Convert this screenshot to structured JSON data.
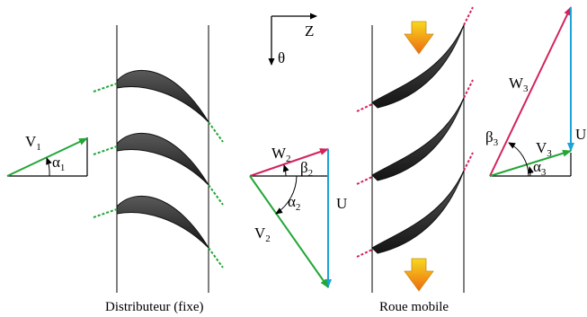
{
  "captions": {
    "stator": "Distributeur (fixe)",
    "rotor": "Roue mobile"
  },
  "axes": {
    "z": "Z",
    "theta": "θ"
  },
  "inlet_triangle": {
    "v_main": "V",
    "v_sub": "1",
    "a_main": "α",
    "a_sub": "1"
  },
  "mid_triangle": {
    "w_main": "W",
    "w_sub": "2",
    "b_main": "β",
    "b_sub": "2",
    "a_main": "α",
    "a_sub": "2",
    "v_main": "V",
    "v_sub": "2",
    "u": "U"
  },
  "outlet_triangle": {
    "w_main": "W",
    "w_sub": "3",
    "b_main": "β",
    "b_sub": "3",
    "v_main": "V",
    "v_sub": "3",
    "a_main": "α",
    "a_sub": "3",
    "u": "U"
  },
  "colors": {
    "absolute_velocity": "#22a636",
    "relative_velocity": "#d3235a",
    "blade_speed": "#1aa3d8",
    "blade_fill": "#2b2b2b",
    "flow_arrow_top": "#f7d81e",
    "flow_arrow_bottom": "#ee6a10"
  }
}
